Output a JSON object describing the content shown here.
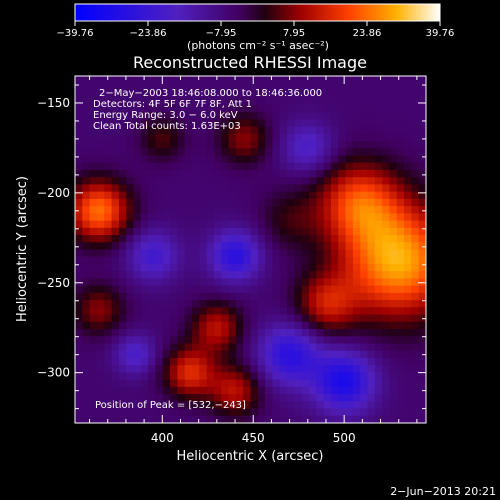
{
  "chart_data": {
    "type": "heatmap",
    "title": "Reconstructed RHESSI Image",
    "xlabel": "Heliocentric X (arcsec)",
    "ylabel": "Heliocentric Y (arcsec)",
    "xlim": [
      352,
      545
    ],
    "ylim": [
      -328,
      -135
    ],
    "x_ticks": [
      400,
      450,
      500
    ],
    "y_ticks": [
      -150,
      -200,
      -250,
      -300
    ],
    "x_tick_labels": [
      "400",
      "450",
      "500"
    ],
    "y_tick_labels": [
      "−150",
      "−200",
      "−250",
      "−300"
    ],
    "colorbar": {
      "vmin": -39.76,
      "vmax": 39.76,
      "tick_labels": [
        "−39.76",
        "−23.86",
        "−7.95",
        "7.95",
        "23.86",
        "39.76"
      ],
      "unit_label": "(photons cm⁻² s⁻¹ asec⁻²)"
    },
    "annotations": [
      "2−May−2003 18:46:08.000 to 18:46:36.000",
      "Detectors: 4F 5F 6F 7F 8F, Att 1",
      "Energy Range: 3.0 − 6.0 keV",
      "Clean     Total counts: 1.63E+03"
    ],
    "peak_label": "Position of Peak = [532,−243]",
    "peak": {
      "x": 532,
      "y": -243
    },
    "sources": [
      {
        "x": 530,
        "y": -238,
        "sigma": 22,
        "amp": 36
      },
      {
        "x": 508,
        "y": -205,
        "sigma": 16,
        "amp": 24
      },
      {
        "x": 365,
        "y": -210,
        "sigma": 12,
        "amp": 30
      },
      {
        "x": 430,
        "y": -275,
        "sigma": 10,
        "amp": 18
      },
      {
        "x": 415,
        "y": -300,
        "sigma": 10,
        "amp": 22
      },
      {
        "x": 440,
        "y": -310,
        "sigma": 10,
        "amp": 18
      },
      {
        "x": 365,
        "y": -265,
        "sigma": 10,
        "amp": 14
      },
      {
        "x": 400,
        "y": -170,
        "sigma": 9,
        "amp": 10
      },
      {
        "x": 445,
        "y": -170,
        "sigma": 10,
        "amp": 14
      },
      {
        "x": 470,
        "y": -215,
        "sigma": 12,
        "amp": 8
      },
      {
        "x": 490,
        "y": -262,
        "sigma": 12,
        "amp": 18
      },
      {
        "x": 395,
        "y": -235,
        "sigma": 10,
        "amp": -16
      },
      {
        "x": 440,
        "y": -235,
        "sigma": 10,
        "amp": -22
      },
      {
        "x": 470,
        "y": -290,
        "sigma": 12,
        "amp": -22
      },
      {
        "x": 500,
        "y": -305,
        "sigma": 12,
        "amp": -26
      },
      {
        "x": 480,
        "y": -175,
        "sigma": 10,
        "amp": -14
      },
      {
        "x": 385,
        "y": -290,
        "sigma": 8,
        "amp": -14
      }
    ]
  },
  "footer_date": "2−Jun−2013 20:21"
}
